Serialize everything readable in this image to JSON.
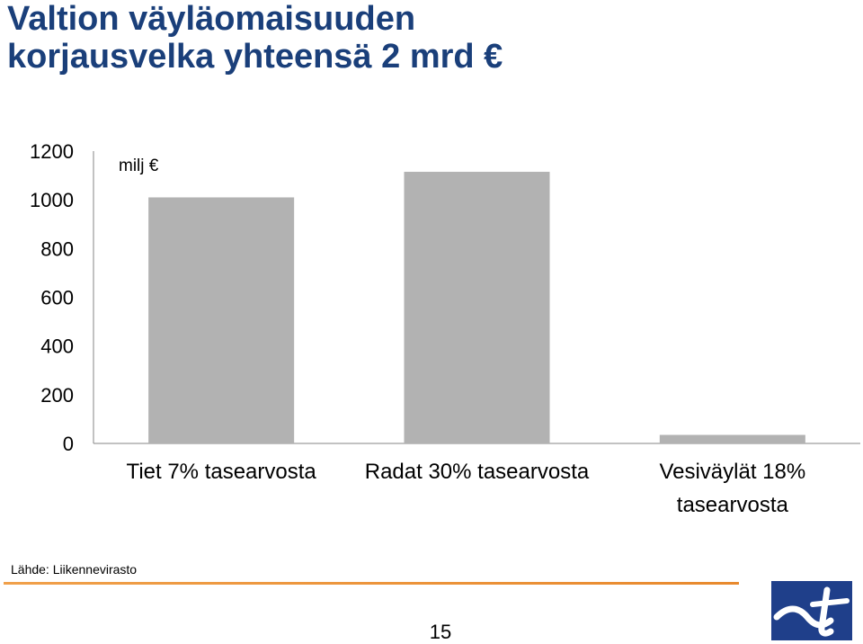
{
  "slide": {
    "title_line1": "Valtion väyläomaisuuden",
    "title_line2": "korjausvelka yhteensä 2 mrd €",
    "source": "Lähde: Liikennevirasto",
    "page_number": "15",
    "logo_icon": "liikennevirasto-logo-icon",
    "title_color": "#1a3f7a",
    "bar_color": "#b2b2b2",
    "accent_color": "#e8892d"
  },
  "chart_data": {
    "type": "bar",
    "title": "",
    "unit_label": "milj €",
    "categories": [
      [
        "Tiet 7% tasearvosta"
      ],
      [
        "Radat 30% tasearvosta"
      ],
      [
        "Vesiväylät 18%",
        "tasearvosta"
      ]
    ],
    "values": [
      1010,
      1115,
      35
    ],
    "yticks": [
      0,
      200,
      400,
      600,
      800,
      1000,
      1200
    ],
    "ylim": [
      0,
      1200
    ],
    "grid": false,
    "legend": "none"
  }
}
